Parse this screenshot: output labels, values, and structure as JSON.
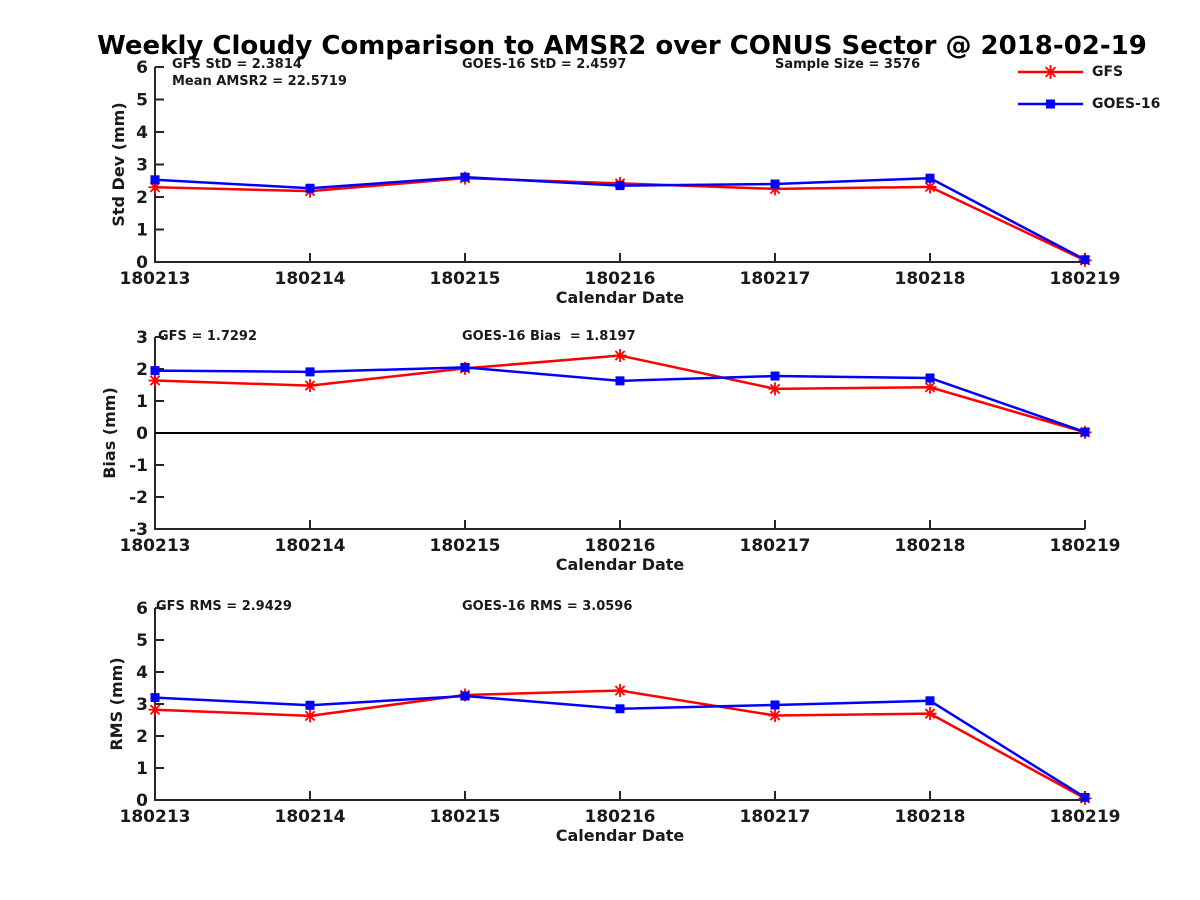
{
  "title": "Weekly Cloudy Comparison to AMSR2 over CONUS Sector @ 2018-02-19",
  "legend": {
    "position": "top-right",
    "items": [
      {
        "label": "GFS",
        "color": "#ff0000",
        "marker": "asterisk"
      },
      {
        "label": "GOES-16",
        "color": "#0000ff",
        "marker": "square"
      }
    ]
  },
  "chart_data": [
    {
      "id": "std-dev",
      "type": "line",
      "ylabel": "Std Dev (mm)",
      "xlabel": "Calendar Date",
      "ylim": [
        0,
        6
      ],
      "yticks": [
        0,
        1,
        2,
        3,
        4,
        5,
        6
      ],
      "grid": false,
      "categories": [
        "180213",
        "180214",
        "180215",
        "180216",
        "180217",
        "180218",
        "180219"
      ],
      "series": [
        {
          "name": "GFS",
          "color": "#ff0000",
          "marker": "asterisk",
          "values": [
            2.3,
            2.18,
            2.58,
            2.42,
            2.25,
            2.31,
            0.05
          ]
        },
        {
          "name": "GOES-16",
          "color": "#0000ff",
          "marker": "square",
          "values": [
            2.53,
            2.27,
            2.61,
            2.35,
            2.4,
            2.58,
            0.07
          ]
        }
      ],
      "annotations": [
        {
          "text": "GFS StD = 2.3814"
        },
        {
          "text": "Mean AMSR2 = 22.5719"
        },
        {
          "text": "GOES-16 StD = 2.4597"
        },
        {
          "text": "Sample Size = 3576"
        }
      ],
      "zero_line": false
    },
    {
      "id": "bias",
      "type": "line",
      "ylabel": "Bias (mm)",
      "xlabel": "Calendar Date",
      "ylim": [
        -3,
        3
      ],
      "yticks": [
        -3,
        -2,
        -1,
        0,
        1,
        2,
        3
      ],
      "grid": false,
      "categories": [
        "180213",
        "180214",
        "180215",
        "180216",
        "180217",
        "180218",
        "180219"
      ],
      "series": [
        {
          "name": "GFS",
          "color": "#ff0000",
          "marker": "asterisk",
          "values": [
            1.64,
            1.48,
            2.02,
            2.42,
            1.38,
            1.43,
            0.02
          ]
        },
        {
          "name": "GOES-16",
          "color": "#0000ff",
          "marker": "square",
          "values": [
            1.95,
            1.91,
            2.05,
            1.63,
            1.78,
            1.72,
            0.03
          ]
        }
      ],
      "annotations": [
        {
          "text": "GFS = 1.7292"
        },
        {
          "text": "GOES-16 Bias  = 1.8197"
        }
      ],
      "zero_line": true
    },
    {
      "id": "rms",
      "type": "line",
      "ylabel": "RMS (mm)",
      "xlabel": "Calendar Date",
      "ylim": [
        0,
        6
      ],
      "yticks": [
        0,
        1,
        2,
        3,
        4,
        5,
        6
      ],
      "grid": false,
      "categories": [
        "180213",
        "180214",
        "180215",
        "180216",
        "180217",
        "180218",
        "180219"
      ],
      "series": [
        {
          "name": "GFS",
          "color": "#ff0000",
          "marker": "asterisk",
          "values": [
            2.82,
            2.63,
            3.28,
            3.42,
            2.64,
            2.7,
            0.05
          ]
        },
        {
          "name": "GOES-16",
          "color": "#0000ff",
          "marker": "square",
          "values": [
            3.2,
            2.96,
            3.25,
            2.85,
            2.97,
            3.1,
            0.08
          ]
        }
      ],
      "annotations": [
        {
          "text": "GFS RMS = 2.9429"
        },
        {
          "text": "GOES-16 RMS = 3.0596"
        }
      ],
      "zero_line": false
    }
  ]
}
